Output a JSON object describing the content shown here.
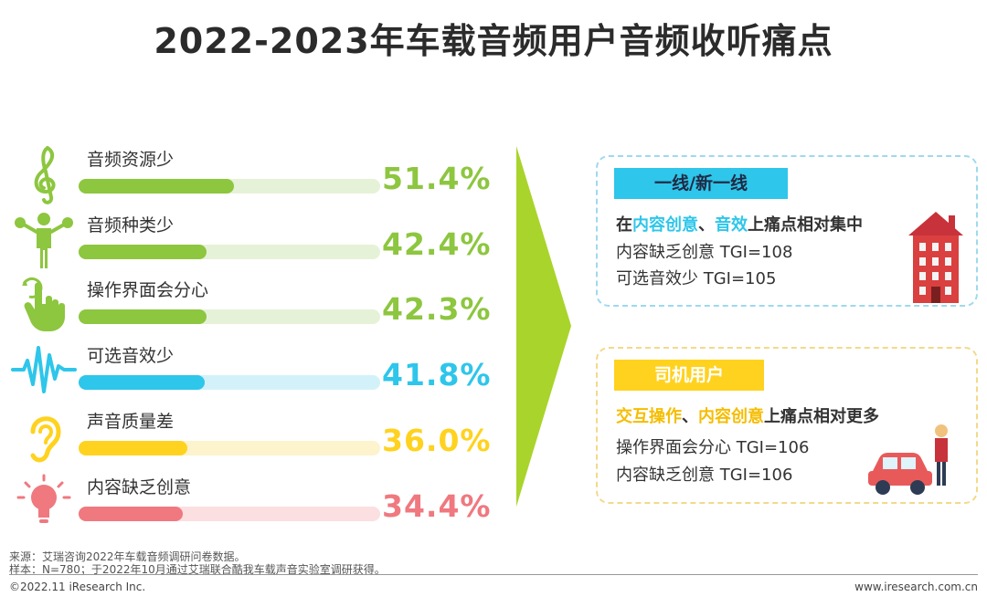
{
  "title": "2022-2023年车载音频用户音频收听痛点",
  "chart_data": {
    "type": "bar",
    "categories": [
      "音频资源少",
      "音频种类少",
      "操作界面会分心",
      "可选音效少",
      "声音质量差",
      "内容缺乏创意"
    ],
    "values": [
      51.4,
      42.4,
      42.3,
      41.8,
      36.0,
      34.4
    ],
    "value_labels": [
      "51.4%",
      "42.4%",
      "42.3%",
      "41.8%",
      "36.0%",
      "34.4%"
    ],
    "ylim": [
      0,
      100
    ],
    "colors": [
      "#8dc63f",
      "#8dc63f",
      "#8dc63f",
      "#2ec6ea",
      "#ffd21f",
      "#f0787f"
    ],
    "track_colors": [
      "#e6f2d7",
      "#e6f2d7",
      "#e6f2d7",
      "#d3f1f9",
      "#fdf3cc",
      "#fbdfe1"
    ],
    "icons": [
      "treble-clef-icon",
      "musician-icon",
      "touch-hand-icon",
      "sound-wave-icon",
      "ear-icon",
      "light-bulb-icon"
    ]
  },
  "panels": [
    {
      "tag": "一线/新一线",
      "headline_pre": "在",
      "headline_hl1": "内容创意",
      "headline_sep": "、",
      "headline_hl2": "音效",
      "headline_post": "上痛点相对集中",
      "lines": [
        "内容缺乏创意  TGI=108",
        "可选音效少  TGI=105"
      ],
      "icon": "building-icon"
    },
    {
      "tag": "司机用户",
      "headline_pre": "",
      "headline_hl1": "交互操作",
      "headline_sep": "、",
      "headline_hl2": "内容创意",
      "headline_post": "上痛点相对更多",
      "lines": [
        "操作界面会分心  TGI=106",
        "内容缺乏创意 TGI=106"
      ],
      "icon": "driver-car-icon"
    }
  ],
  "source": {
    "line1": "来源：艾瑞咨询2022年车载音频调研问卷数据。",
    "line2": "样本：N=780；于2022年10月通过艾瑞联合酷我车载声音实验室调研获得。"
  },
  "footer": {
    "copyright": "©2022.11 iResearch Inc.",
    "website": "www.iresearch.com.cn"
  },
  "colors": {
    "green": "#8dc63f",
    "blue": "#2ec6ea",
    "yellow": "#ffd21f",
    "pink": "#f0787f",
    "arrow": "#a9d42b"
  }
}
